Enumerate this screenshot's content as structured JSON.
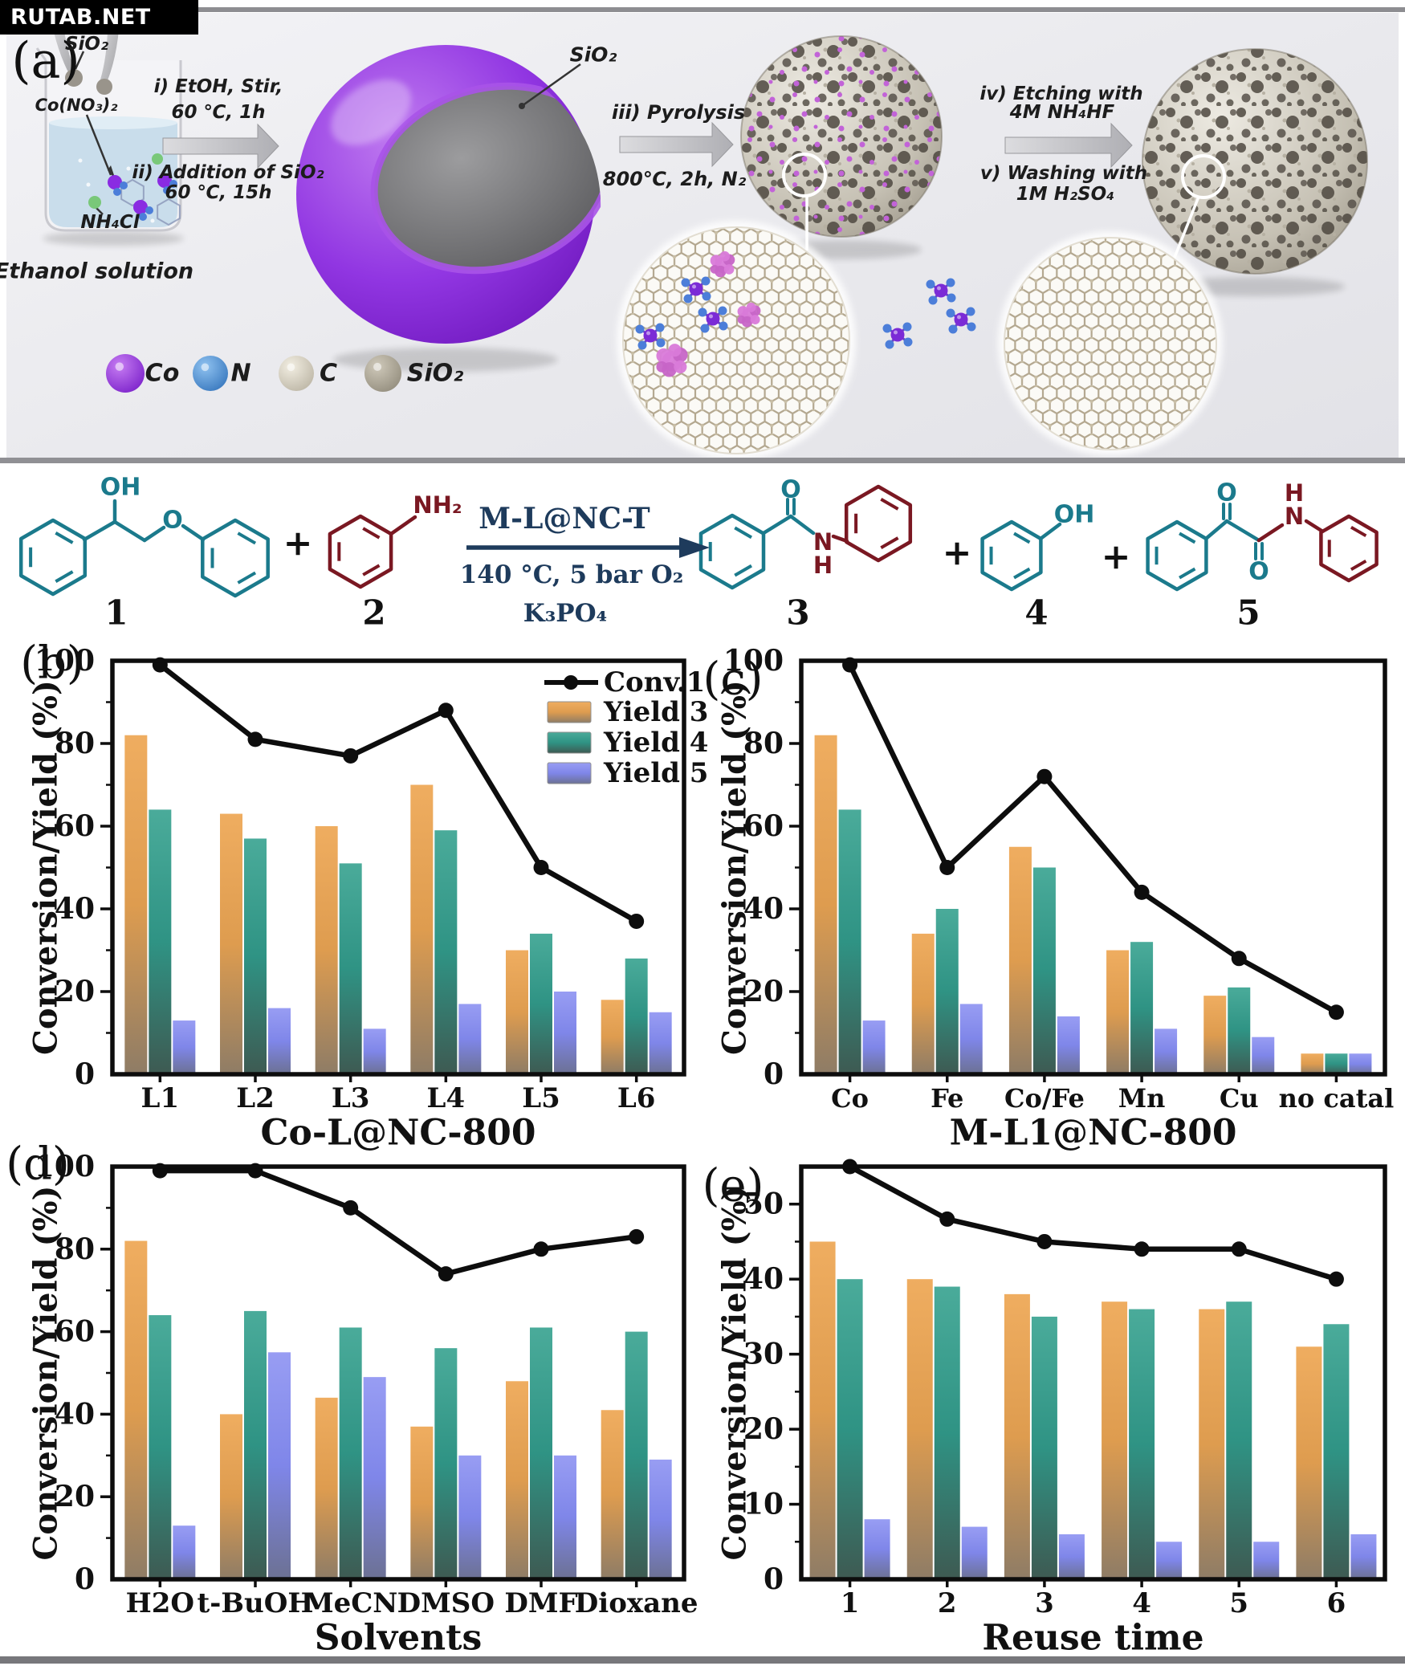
{
  "watermark": {
    "label": "RUTAB.NET"
  },
  "panel_a": {
    "letter": "(a)",
    "beaker": {
      "sio2": "SiO₂",
      "co_salt": "Co(NO₃)₂",
      "nh4cl": "NH₄Cl",
      "caption": "Ethanol solution"
    },
    "steps": [
      {
        "line1": "i) EtOH, Stir,",
        "line2": "60 ℃, 1h"
      },
      {
        "line1": "ii) Addition of SiO₂",
        "line2": "60 ℃, 15h"
      },
      {
        "line1": "iii) Pyrolysis",
        "line2": "800℃, 2h, N₂"
      },
      {
        "line1": "iv) Etching with",
        "line2": "4M NH₄HF"
      },
      {
        "line1": "v) Washing with",
        "line2": "1M H₂SO₄"
      }
    ],
    "core_label": "SiO₂",
    "legend": [
      {
        "label": "Co",
        "color": "#8A2BE2"
      },
      {
        "label": "N",
        "color": "#4C7ED9"
      },
      {
        "label": "C",
        "color": "#DDD8CA"
      },
      {
        "label": "SiO₂",
        "color": "#A49E8E"
      }
    ]
  },
  "reaction": {
    "catalyst": "M-L@NC-T",
    "conditions": "140 °C,  5 bar O₂",
    "base": "K₃PO₄",
    "plus": "+",
    "compounds": [
      {
        "num": "1"
      },
      {
        "num": "2"
      },
      {
        "num": "3"
      },
      {
        "num": "4"
      },
      {
        "num": "5"
      }
    ],
    "atom_labels": {
      "oh1": "OH",
      "o_ether": "O",
      "nh2": "NH₂",
      "o3": "O",
      "n3": "N",
      "h3": "H",
      "oh4": "OH",
      "o5a": "O",
      "o5b": "O",
      "n5": "N",
      "h5": "H"
    }
  },
  "colors": {
    "structure_teal": "#1B7A8C",
    "structure_red": "#7A1822",
    "navy_text": "#1E3B5C",
    "conv_line": "#0D0D0D",
    "yield3_top": "#EFAD60",
    "yield3_mid": "#DE9C4F",
    "yield3_bottom": "#8E7C66",
    "yield4_top": "#4AAB9A",
    "yield4_mid": "#2F9384",
    "yield4_bottom": "#3E5A52",
    "yield5_top": "#989DF3",
    "yield5_mid": "#7F86E9",
    "yield5_bottom": "#6C7193"
  },
  "chart_data": [
    {
      "id": "b",
      "letter": "(b)",
      "type": "bar-line",
      "categories": [
        "L1",
        "L2",
        "L3",
        "L4",
        "L5",
        "L6"
      ],
      "series": [
        {
          "name": "Conv.1",
          "type": "line",
          "values": [
            99,
            81,
            77,
            88,
            50,
            37
          ]
        },
        {
          "name": "Yield 3",
          "type": "bar",
          "values": [
            82,
            63,
            60,
            70,
            30,
            18
          ]
        },
        {
          "name": "Yield 4",
          "type": "bar",
          "values": [
            64,
            57,
            51,
            59,
            34,
            28
          ]
        },
        {
          "name": "Yield 5",
          "type": "bar",
          "values": [
            13,
            16,
            11,
            17,
            20,
            15
          ]
        }
      ],
      "xlabel": "Co-L@NC-800",
      "ylabel": "Conversion/Yield (%)",
      "ylim": [
        0,
        100
      ],
      "yticks": [
        0,
        20,
        40,
        60,
        80,
        100
      ],
      "minor_step": 10,
      "legend": [
        "Conv.1",
        "Yield 3",
        "Yield 4",
        "Yield 5"
      ],
      "legend_position": "top-right",
      "grid": false
    },
    {
      "id": "c",
      "letter": "(c)",
      "type": "bar-line",
      "categories": [
        "Co",
        "Fe",
        "Co/Fe",
        "Mn",
        "Cu",
        "no catal"
      ],
      "series": [
        {
          "name": "Conv.1",
          "type": "line",
          "values": [
            99,
            50,
            72,
            44,
            28,
            15
          ]
        },
        {
          "name": "Yield 3",
          "type": "bar",
          "values": [
            82,
            34,
            55,
            30,
            19,
            5
          ]
        },
        {
          "name": "Yield 4",
          "type": "bar",
          "values": [
            64,
            40,
            50,
            32,
            21,
            5
          ]
        },
        {
          "name": "Yield 5",
          "type": "bar",
          "values": [
            13,
            17,
            14,
            11,
            9,
            5
          ]
        }
      ],
      "xlabel": "M-L1@NC-800",
      "ylabel": "Conversion/Yield (%)",
      "ylim": [
        0,
        100
      ],
      "yticks": [
        0,
        20,
        40,
        60,
        80,
        100
      ],
      "minor_step": 10,
      "legend": null,
      "grid": false
    },
    {
      "id": "d",
      "letter": "(d)",
      "type": "bar-line",
      "categories": [
        "H2O",
        "t-BuOH",
        "MeCN",
        "DMSO",
        "DMF",
        "Dioxane"
      ],
      "series": [
        {
          "name": "Conv.1",
          "type": "line",
          "values": [
            99,
            99,
            90,
            74,
            80,
            83
          ]
        },
        {
          "name": "Yield 3",
          "type": "bar",
          "values": [
            82,
            40,
            44,
            37,
            48,
            41
          ]
        },
        {
          "name": "Yield 4",
          "type": "bar",
          "values": [
            64,
            65,
            61,
            56,
            61,
            60
          ]
        },
        {
          "name": "Yield 5",
          "type": "bar",
          "values": [
            13,
            55,
            49,
            30,
            30,
            29
          ]
        }
      ],
      "xlabel": "Solvents",
      "ylabel": "Conversion/Yield (%)",
      "ylim": [
        0,
        100
      ],
      "yticks": [
        0,
        20,
        40,
        60,
        80,
        100
      ],
      "minor_step": 10,
      "legend": null,
      "grid": false
    },
    {
      "id": "e",
      "letter": "(e)",
      "type": "bar-line",
      "categories": [
        "1",
        "2",
        "3",
        "4",
        "5",
        "6"
      ],
      "series": [
        {
          "name": "Conv.1",
          "type": "line",
          "values": [
            55,
            48,
            45,
            44,
            44,
            40
          ]
        },
        {
          "name": "Yield 3",
          "type": "bar",
          "values": [
            45,
            40,
            38,
            37,
            36,
            31
          ]
        },
        {
          "name": "Yield 4",
          "type": "bar",
          "values": [
            40,
            39,
            35,
            36,
            37,
            34
          ]
        },
        {
          "name": "Yield 5",
          "type": "bar",
          "values": [
            8,
            7,
            6,
            5,
            5,
            6
          ]
        }
      ],
      "xlabel": "Reuse time",
      "ylabel": "Conversion/Yield (%)",
      "ylim": [
        0,
        55
      ],
      "yticks": [
        0,
        10,
        20,
        30,
        40,
        50
      ],
      "minor_step": 5,
      "legend": null,
      "grid": false
    }
  ]
}
